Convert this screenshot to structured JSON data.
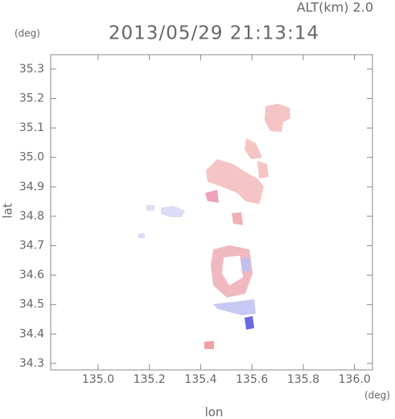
{
  "chart_data": {
    "type": "map",
    "title": "2013/05/29 21:13:14",
    "altitude_label": "ALT(km) 2.0",
    "x_label": "lon",
    "y_label": "lat",
    "x_unit": "(deg)",
    "y_unit": "(deg)",
    "xlim": [
      134.815,
      136.07
    ],
    "ylim": [
      34.278,
      35.349
    ],
    "xticks": [
      {
        "value": 135.0,
        "label": "135.0"
      },
      135.2,
      135.4,
      135.6,
      135.8,
      {
        "value": 136.0,
        "label": "136.0"
      }
    ],
    "yticks": [
      34.3,
      34.4,
      34.5,
      34.6,
      34.7,
      34.8,
      34.9,
      {
        "value": 35.0,
        "label": "35.0"
      },
      35.1,
      35.2,
      35.3
    ]
  }
}
